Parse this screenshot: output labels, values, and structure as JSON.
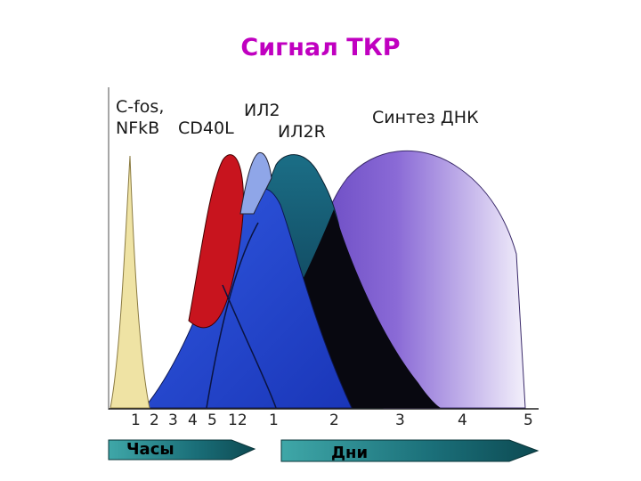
{
  "title": "Сигнал ТКР",
  "title_color": "#c000c0",
  "labels": {
    "cfos_line1": "C-fos,",
    "cfos_line2": "NFkB",
    "cd40l": "CD40L",
    "il2": "ИЛ2",
    "il2r": "ИЛ2R",
    "dna": "Синтез ДНК"
  },
  "hour_ticks": [
    "1",
    "2",
    "3",
    "4",
    "5",
    "12"
  ],
  "day_ticks": [
    "1",
    "2",
    "3",
    "4",
    "5"
  ],
  "arrows": {
    "hours": "Часы",
    "days": "Дни"
  },
  "colors": {
    "cfos": "#efe3a4",
    "cd40l": "#c8141e",
    "il2": "#8fa6e8",
    "il2r": "#1e5e78",
    "blue": "#2850d8",
    "black": "#080810",
    "dna": "#7a5cc8"
  }
}
